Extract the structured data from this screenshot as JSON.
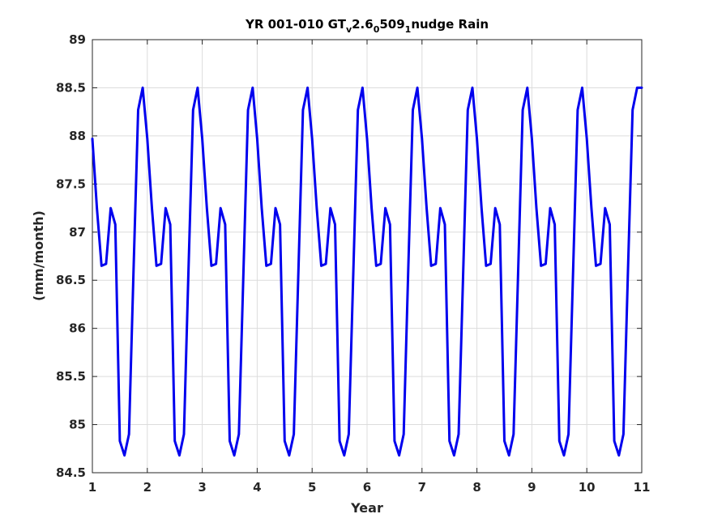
{
  "chart_data": {
    "type": "line",
    "title": {
      "prefix": "YR 001-010 GT",
      "sub1": "v",
      "mid1": "2.6",
      "sub2": "0",
      "mid2": "509",
      "sub3": "1",
      "suffix": "nudge Rain"
    },
    "xlabel": "Year",
    "ylabel": "(mm/month)",
    "xlim": [
      1,
      11
    ],
    "ylim": [
      84.5,
      89
    ],
    "xticks": [
      1,
      2,
      3,
      4,
      5,
      6,
      7,
      8,
      9,
      10,
      11
    ],
    "yticks": [
      84.5,
      85,
      85.5,
      86,
      86.5,
      87,
      87.5,
      88,
      88.5,
      89
    ],
    "grid": true,
    "line_color": "#0000ee",
    "annual_cycle": [
      87.97,
      87.25,
      86.65,
      86.67,
      87.25,
      87.08,
      84.83,
      84.68,
      84.9,
      86.6,
      88.27,
      88.5
    ],
    "years": 10,
    "final_value": 88.5
  }
}
